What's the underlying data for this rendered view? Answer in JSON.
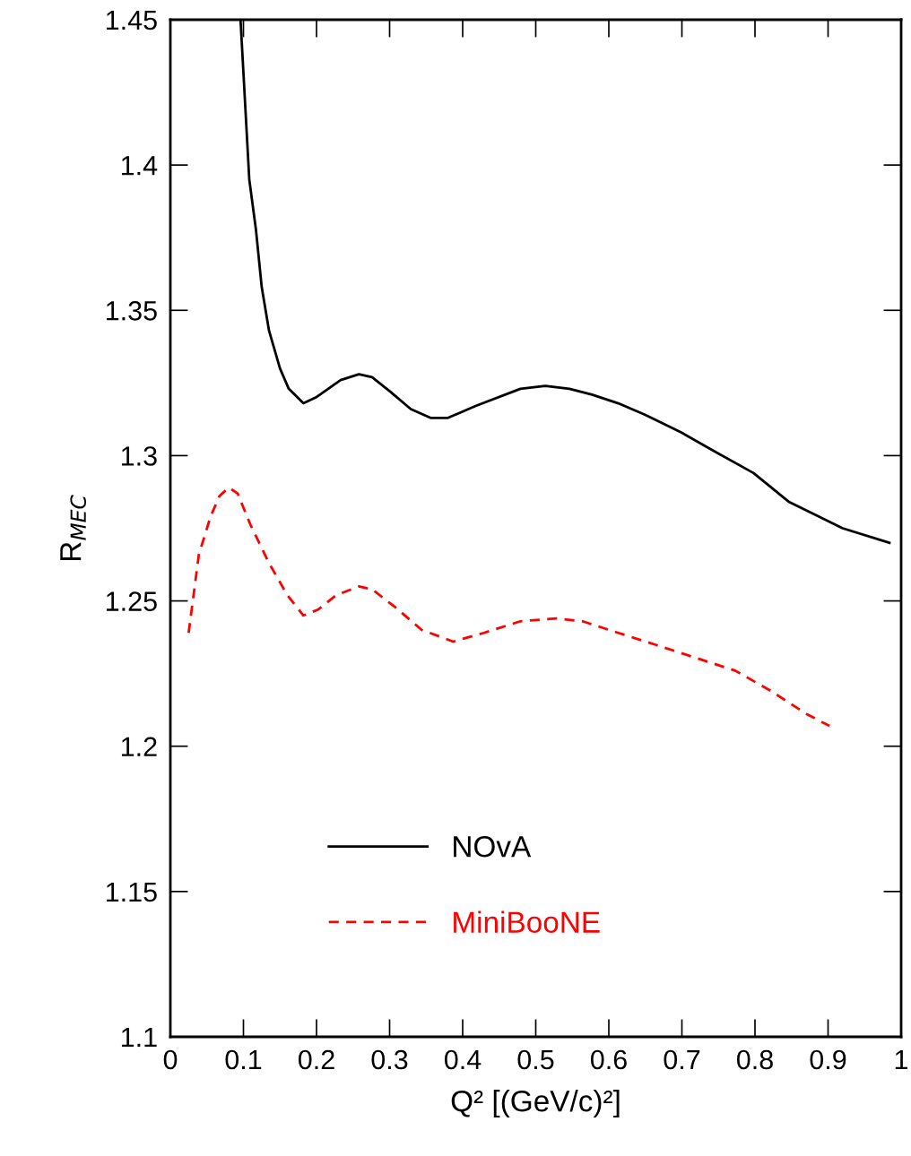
{
  "chart_data": {
    "type": "line",
    "xlabel": "Q² [(GeV/c)²]",
    "ylabel": "R$_{MEC}$",
    "xlim": [
      0,
      1
    ],
    "ylim": [
      1.1,
      1.45
    ],
    "xticks": [
      0,
      0.1,
      0.2,
      0.3,
      0.4,
      0.5,
      0.6,
      0.7,
      0.8,
      0.9,
      1
    ],
    "yticks": [
      1.1,
      1.15,
      1.2,
      1.25,
      1.3,
      1.35,
      1.4,
      1.45
    ],
    "grid": false,
    "legend": "bottom left",
    "series": [
      {
        "name": "NOvA",
        "color": "#000000",
        "line_style": "solid",
        "x": [
          0.096,
          0.108,
          0.117,
          0.125,
          0.135,
          0.15,
          0.162,
          0.182,
          0.199,
          0.233,
          0.258,
          0.276,
          0.301,
          0.329,
          0.356,
          0.38,
          0.417,
          0.479,
          0.513,
          0.546,
          0.577,
          0.613,
          0.65,
          0.699,
          0.748,
          0.798,
          0.847,
          0.92,
          0.984
        ],
        "values": [
          1.45,
          1.395,
          1.378,
          1.358,
          1.343,
          1.33,
          1.323,
          1.318,
          1.32,
          1.326,
          1.328,
          1.327,
          1.322,
          1.316,
          1.313,
          1.313,
          1.317,
          1.323,
          1.324,
          1.323,
          1.321,
          1.318,
          1.314,
          1.308,
          1.301,
          1.294,
          1.284,
          1.275,
          1.27
        ]
      },
      {
        "name": "MiniBooNE",
        "color": "#ff0000",
        "line_style": "dashed",
        "x": [
          0.025,
          0.039,
          0.055,
          0.067,
          0.08,
          0.092,
          0.11,
          0.135,
          0.16,
          0.182,
          0.202,
          0.227,
          0.258,
          0.276,
          0.307,
          0.344,
          0.387,
          0.429,
          0.479,
          0.528,
          0.564,
          0.613,
          0.663,
          0.724,
          0.773,
          0.822,
          0.871,
          0.902
        ],
        "values": [
          1.239,
          1.266,
          1.279,
          1.286,
          1.289,
          1.287,
          1.276,
          1.263,
          1.252,
          1.245,
          1.247,
          1.252,
          1.255,
          1.254,
          1.248,
          1.24,
          1.236,
          1.239,
          1.243,
          1.244,
          1.243,
          1.239,
          1.235,
          1.23,
          1.226,
          1.219,
          1.211,
          1.207
        ]
      }
    ]
  }
}
